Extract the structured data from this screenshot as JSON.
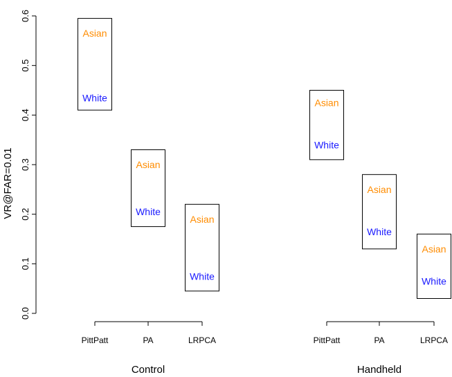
{
  "chart_data": {
    "type": "range-box",
    "ylabel": "VR@FAR=0.01",
    "ylim": [
      0.0,
      0.6
    ],
    "yticks": [
      "0.0",
      "0.1",
      "0.2",
      "0.3",
      "0.4",
      "0.5",
      "0.6"
    ],
    "groups": [
      {
        "name": "Control",
        "items": [
          {
            "label": "PittPatt",
            "box": [
              0.41,
              0.595
            ],
            "asian": 0.565,
            "white": 0.435
          },
          {
            "label": "PA",
            "box": [
              0.175,
              0.33
            ],
            "asian": 0.3,
            "white": 0.205
          },
          {
            "label": "LRPCA",
            "box": [
              0.045,
              0.22
            ],
            "asian": 0.19,
            "white": 0.075
          }
        ]
      },
      {
        "name": "Handheld",
        "items": [
          {
            "label": "PittPatt",
            "box": [
              0.31,
              0.45
            ],
            "asian": 0.425,
            "white": 0.34
          },
          {
            "label": "PA",
            "box": [
              0.13,
              0.28
            ],
            "asian": 0.25,
            "white": 0.165
          },
          {
            "label": "LRPCA",
            "box": [
              0.03,
              0.16
            ],
            "asian": 0.13,
            "white": 0.065
          }
        ]
      }
    ],
    "series": [
      {
        "name": "Asian",
        "color": "#ff8c00"
      },
      {
        "name": "White",
        "color": "#1a1aff"
      }
    ]
  }
}
